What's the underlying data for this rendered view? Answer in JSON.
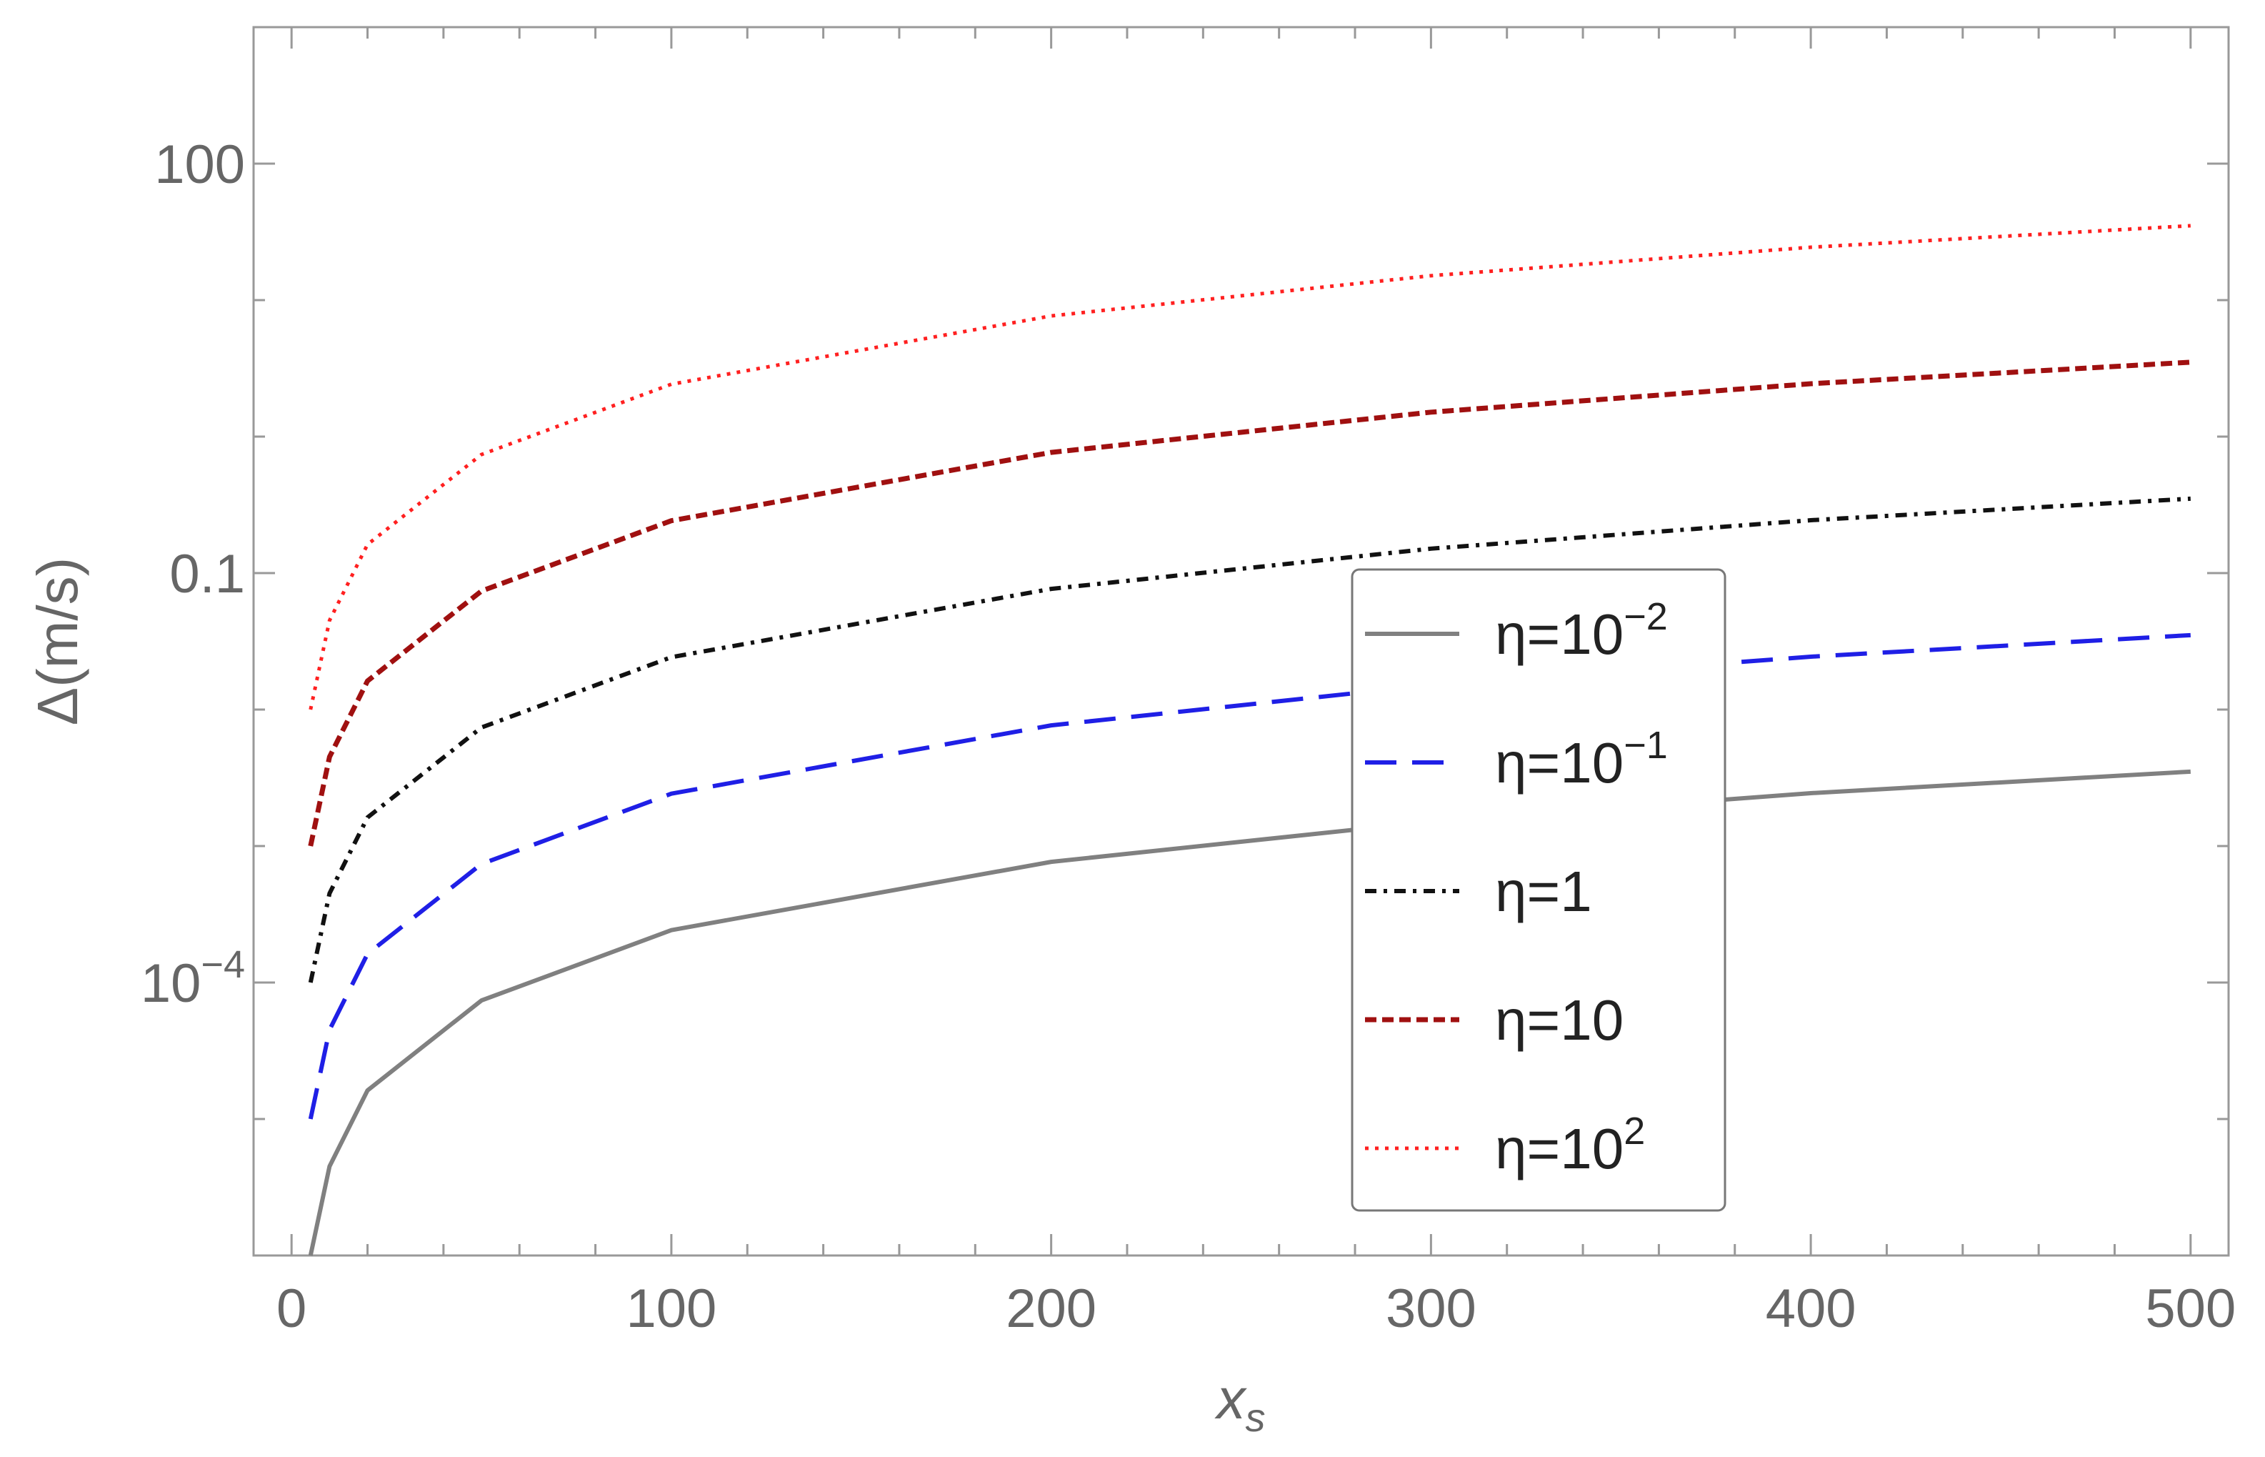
{
  "chart_data": {
    "type": "line",
    "xlabel": "x",
    "xlabel_sub": "s",
    "ylabel": "Δ(m/s)",
    "xlim": [
      -10,
      510
    ],
    "ylim": [
      1e-06,
      1000
    ],
    "yscale": "log",
    "grid": false,
    "legend_position": "center-right",
    "x_ticks": [
      {
        "value": 0,
        "label": "0"
      },
      {
        "value": 100,
        "label": "100"
      },
      {
        "value": 200,
        "label": "200"
      },
      {
        "value": 300,
        "label": "300"
      },
      {
        "value": 400,
        "label": "400"
      },
      {
        "value": 500,
        "label": "500"
      }
    ],
    "y_ticks": [
      {
        "value": 100,
        "label": "100",
        "exp": ""
      },
      {
        "value": 0.1,
        "label": "0.1",
        "exp": ""
      },
      {
        "value": 0.0001,
        "label": "10",
        "exp": "−4"
      }
    ],
    "series": [
      {
        "name_base": "η=10",
        "name_exp": "−2",
        "color": "#808080",
        "style": "solid",
        "x": [
          5,
          10,
          20,
          50,
          100,
          200,
          300,
          400,
          500
        ],
        "y": [
          1e-06,
          4.5e-06,
          1.62e-05,
          7.39e-05,
          0.000242,
          0.000766,
          0.00151,
          0.00244,
          0.00351
        ]
      },
      {
        "name_base": "η=10",
        "name_exp": "−1",
        "color": "#1f1fe6",
        "style": "dashed",
        "x": [
          5,
          10,
          20,
          50,
          100,
          200,
          300,
          400,
          500
        ],
        "y": [
          1e-05,
          4.5e-05,
          0.000162,
          0.000739,
          0.00242,
          0.00766,
          0.0151,
          0.0244,
          0.0351
        ]
      },
      {
        "name_base": "η=1",
        "name_exp": "",
        "color": "#111111",
        "style": "dashdot",
        "x": [
          5,
          10,
          20,
          50,
          100,
          200,
          300,
          400,
          500
        ],
        "y": [
          0.0001,
          0.00045,
          0.00162,
          0.00739,
          0.0242,
          0.0766,
          0.151,
          0.244,
          0.351
        ]
      },
      {
        "name_base": "η=10",
        "name_exp": "",
        "color": "#a01010",
        "style": "shortdash",
        "x": [
          5,
          10,
          20,
          50,
          100,
          200,
          300,
          400,
          500
        ],
        "y": [
          0.001,
          0.0045,
          0.0162,
          0.0739,
          0.242,
          0.766,
          1.51,
          2.44,
          3.51
        ]
      },
      {
        "name_base": "η=10",
        "name_exp": "2",
        "color": "#ff2020",
        "style": "dotted",
        "x": [
          5,
          10,
          20,
          50,
          100,
          200,
          300,
          400,
          500
        ],
        "y": [
          0.01,
          0.045,
          0.162,
          0.739,
          2.42,
          7.66,
          15.1,
          24.4,
          35.1
        ]
      }
    ]
  }
}
